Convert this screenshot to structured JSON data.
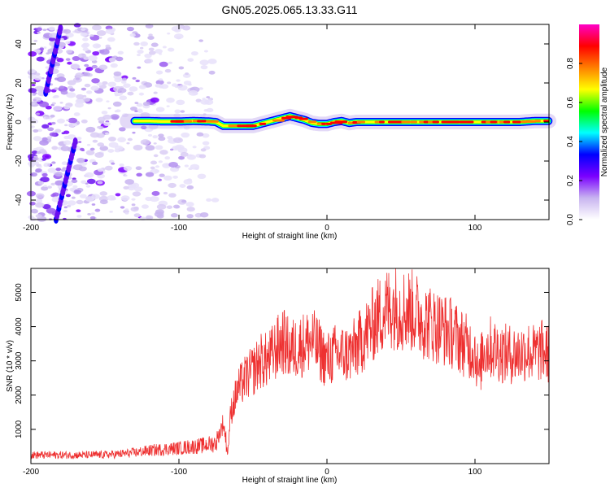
{
  "title": "GN05.2025.065.13.33.G11",
  "chart_data": [
    {
      "type": "heatmap",
      "xlabel": "Height of straight line (km)",
      "ylabel": "Frequency (Hz)",
      "xlim": [
        -200,
        150
      ],
      "ylim": [
        -50,
        50
      ],
      "xticks": [
        -200,
        -100,
        0,
        100
      ],
      "yticks": [
        -40,
        -20,
        0,
        20,
        40
      ],
      "colorbar": {
        "label": "Normalized spectral amplitude",
        "range": [
          0,
          1
        ],
        "ticks": [
          "0.0",
          "0.2",
          "0.4",
          "0.6",
          "0.8"
        ],
        "stops": [
          "#ffffff",
          "#c8b4f0",
          "#7a00ff",
          "#0000ff",
          "#00ffff",
          "#00ff00",
          "#ffff00",
          "#ff8000",
          "#ff0000",
          "#ff00c8"
        ]
      },
      "grid": false,
      "main_line": {
        "x": [
          -130,
          -120,
          -110,
          -100,
          -90,
          -80,
          -75,
          -70,
          -60,
          -50,
          -45,
          -40,
          -35,
          -30,
          -25,
          -20,
          -15,
          -10,
          -5,
          0,
          5,
          10,
          15,
          20,
          30,
          40,
          50,
          60,
          70,
          80,
          90,
          100,
          110,
          120,
          130,
          140,
          150
        ],
        "y": [
          0.5,
          0.5,
          0.3,
          0.3,
          0.5,
          0.3,
          0,
          -2,
          -2,
          -2,
          -1,
          0,
          1,
          2,
          3,
          2,
          1,
          -0.5,
          -1,
          -1,
          0,
          0.5,
          -0.5,
          0,
          0,
          0,
          0,
          0,
          0,
          0,
          0,
          0,
          0,
          0,
          0,
          0.5,
          0.5
        ]
      },
      "noise_streaks": [
        {
          "x": [
            -183,
            -170
          ],
          "y": [
            -50,
            -10
          ]
        },
        {
          "x": [
            -190,
            -180
          ],
          "y": [
            15,
            48
          ]
        }
      ]
    },
    {
      "type": "line",
      "xlabel": "Height of straight line (km)",
      "ylabel": "SNR (10 * v/v)",
      "xlim": [
        -200,
        150
      ],
      "ylim": [
        0,
        5700
      ],
      "xticks": [
        -200,
        -100,
        0,
        100
      ],
      "yticks": [
        1000,
        2000,
        3000,
        4000,
        5000
      ],
      "color": "#ee3030",
      "grid": false,
      "x": [
        -200,
        -190,
        -180,
        -170,
        -160,
        -150,
        -140,
        -130,
        -120,
        -110,
        -100,
        -95,
        -90,
        -85,
        -80,
        -75,
        -70,
        -67,
        -65,
        -60,
        -55,
        -50,
        -45,
        -40,
        -35,
        -30,
        -25,
        -20,
        -15,
        -10,
        -5,
        0,
        5,
        10,
        15,
        20,
        25,
        30,
        35,
        40,
        45,
        50,
        55,
        60,
        65,
        70,
        75,
        80,
        85,
        90,
        95,
        100,
        103,
        105,
        110,
        115,
        120,
        125,
        130,
        135,
        140,
        145,
        150
      ],
      "y": [
        250,
        250,
        250,
        250,
        250,
        260,
        280,
        320,
        380,
        420,
        450,
        480,
        500,
        520,
        560,
        600,
        1200,
        300,
        1500,
        2200,
        2500,
        2700,
        3000,
        3000,
        3300,
        3600,
        3300,
        3400,
        3500,
        3600,
        3300,
        3000,
        3200,
        3200,
        3200,
        3400,
        3700,
        4000,
        4300,
        4500,
        4600,
        4500,
        4500,
        4400,
        4200,
        4100,
        4000,
        3900,
        3800,
        3600,
        3400,
        3300,
        2500,
        3300,
        3400,
        3300,
        3200,
        3200,
        3200,
        3300,
        3200,
        3300,
        3200
      ]
    }
  ]
}
